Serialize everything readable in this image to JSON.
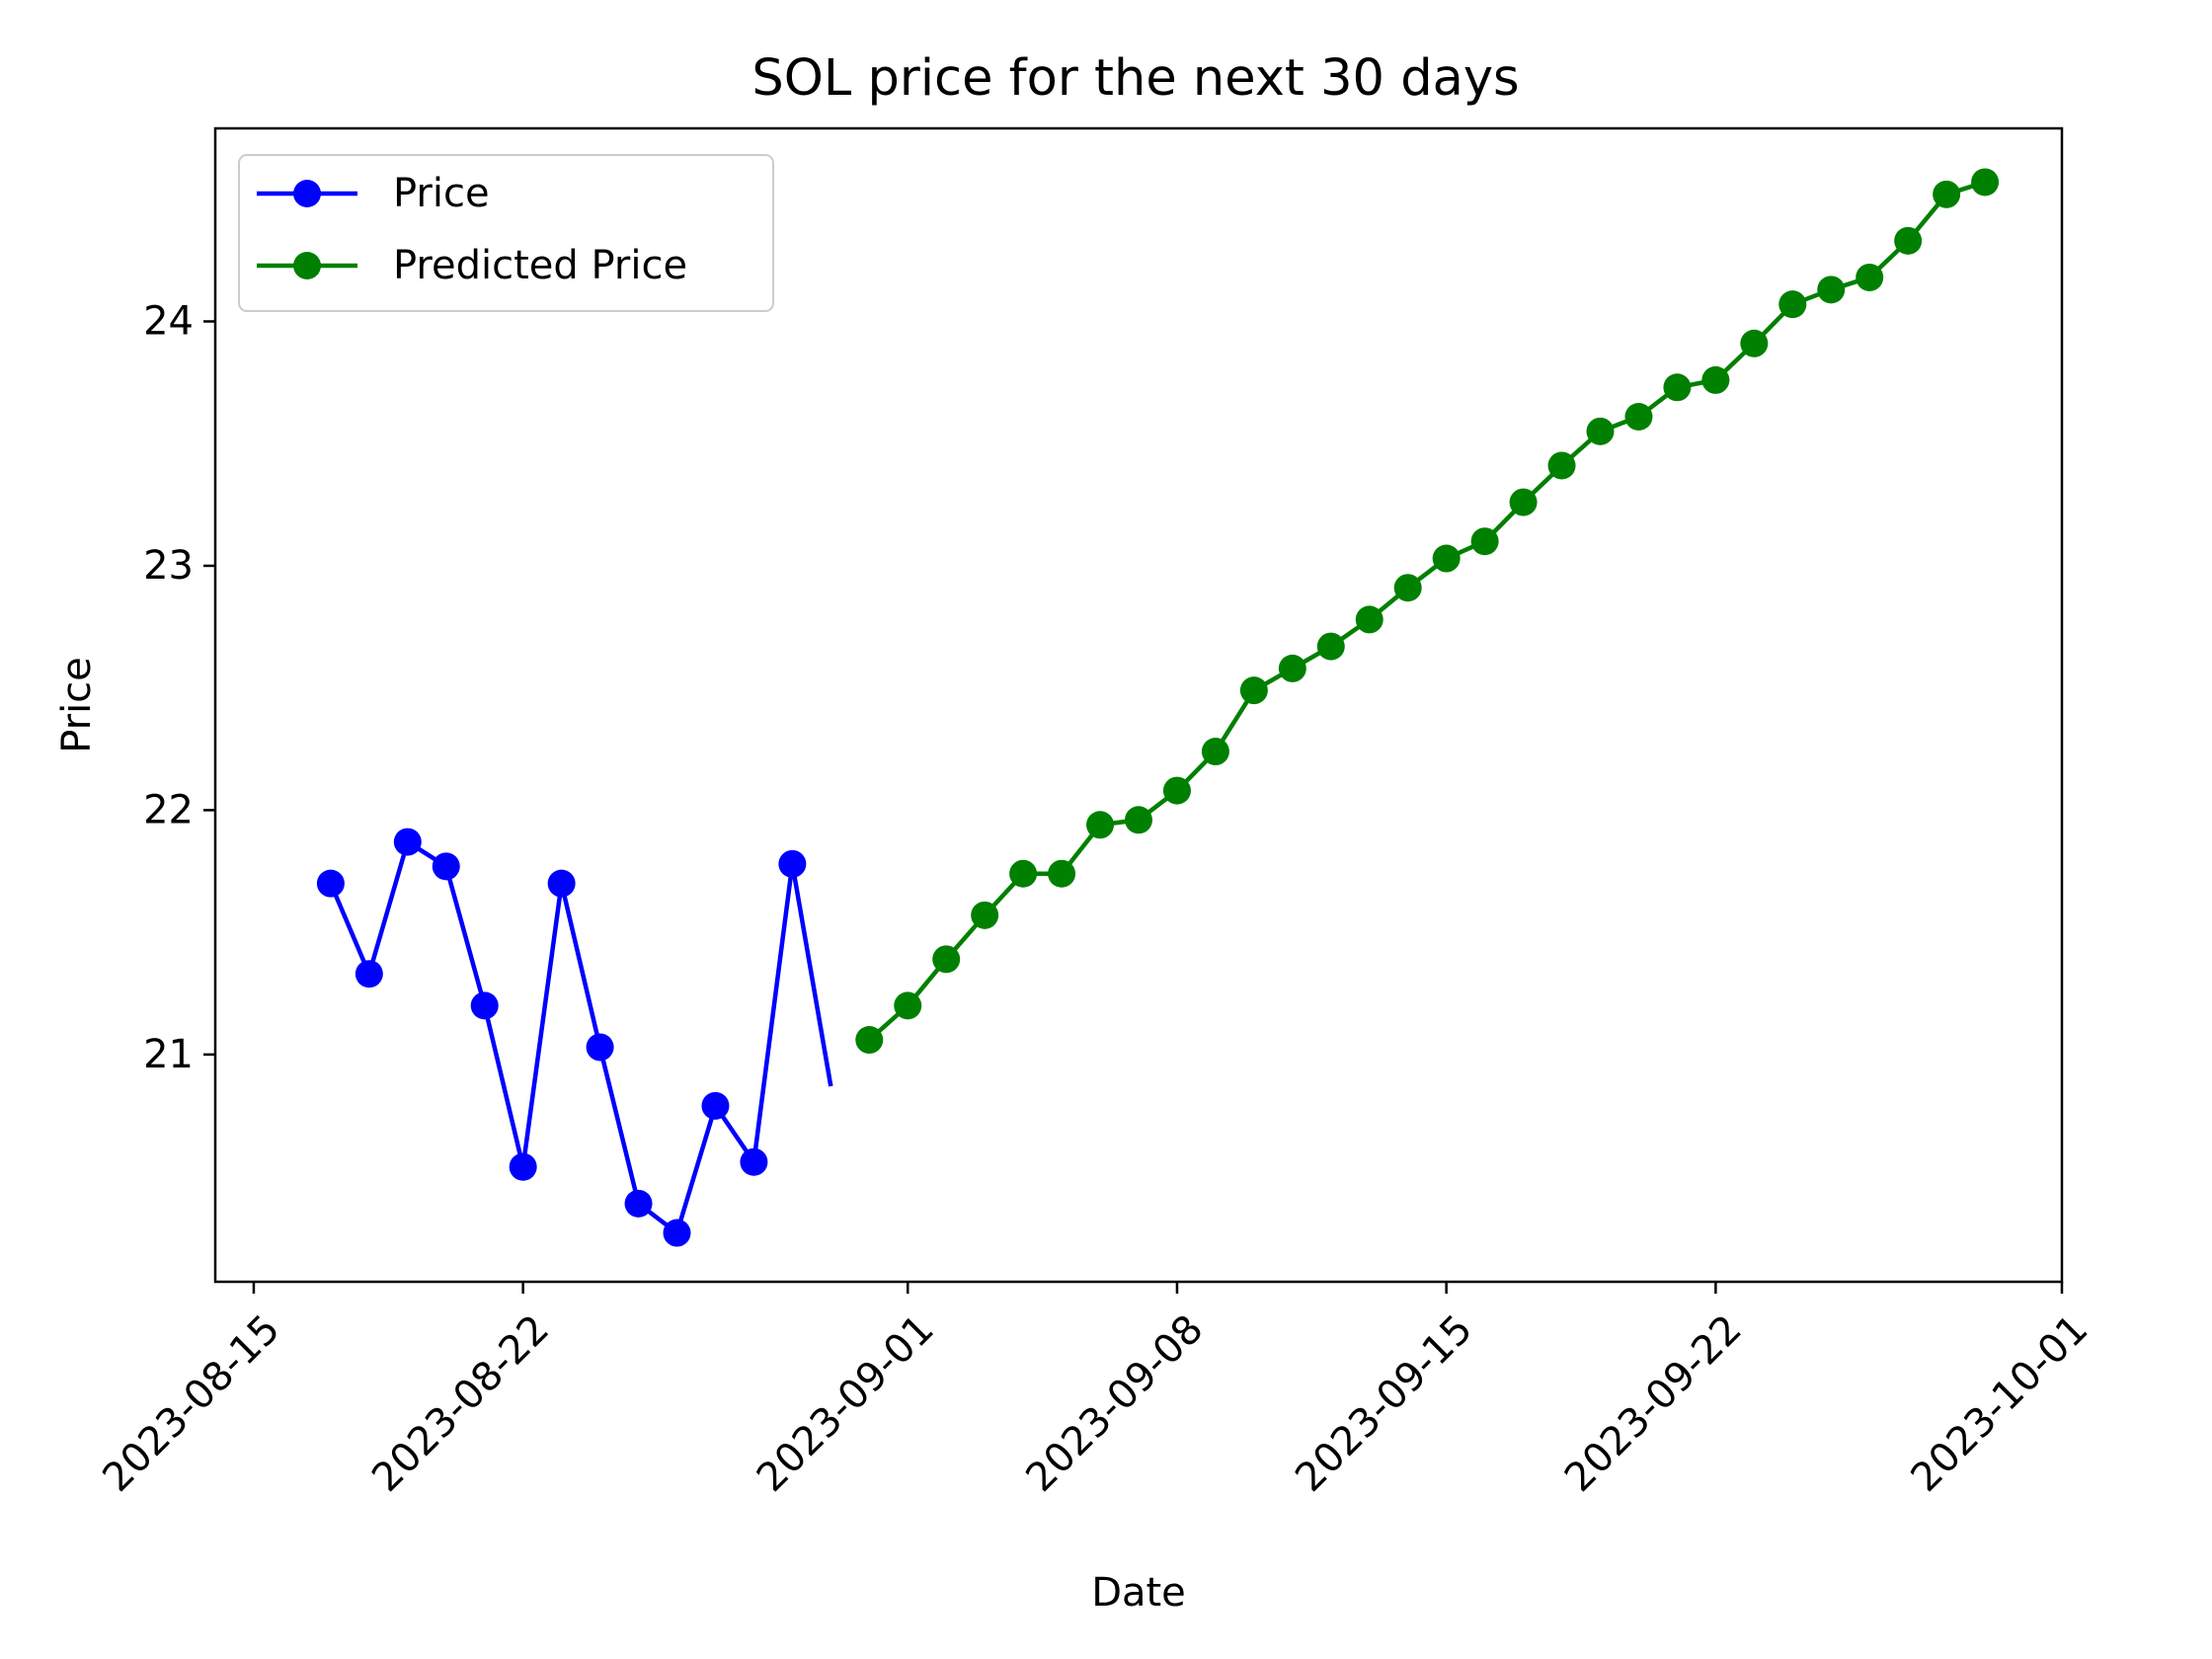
{
  "chart_data": {
    "type": "line",
    "title": "SOL price for the next 30 days",
    "xlabel": "Date",
    "ylabel": "Price",
    "xlim": [
      "2023-08-14",
      "2023-10-01"
    ],
    "ylim": [
      20.07,
      24.79
    ],
    "x_ticks": [
      "2023-08-15",
      "2023-08-22",
      "2023-09-01",
      "2023-09-08",
      "2023-09-15",
      "2023-09-22",
      "2023-10-01"
    ],
    "y_ticks": [
      21,
      22,
      23,
      24
    ],
    "grid": false,
    "legend_position": "top-left",
    "series": [
      {
        "name": "Price",
        "color": "#0000ff",
        "start": "2023-08-17",
        "values": [
          21.7,
          21.33,
          21.87,
          21.77,
          21.2,
          20.54,
          21.7,
          21.03,
          20.39,
          20.27,
          20.79,
          20.56,
          21.78
        ],
        "line_end": {
          "x": "2023-08-30",
          "y": 20.87
        }
      },
      {
        "name": "Predicted Price",
        "color": "#008000",
        "start": "2023-08-31",
        "values": [
          21.06,
          21.2,
          21.39,
          21.57,
          21.74,
          21.74,
          21.94,
          21.96,
          22.08,
          22.24,
          22.49,
          22.58,
          22.67,
          22.78,
          22.91,
          23.03,
          23.1,
          23.26,
          23.41,
          23.55,
          23.61,
          23.73,
          23.76,
          23.91,
          24.07,
          24.13,
          24.18,
          24.33,
          24.52,
          24.57
        ]
      }
    ]
  }
}
